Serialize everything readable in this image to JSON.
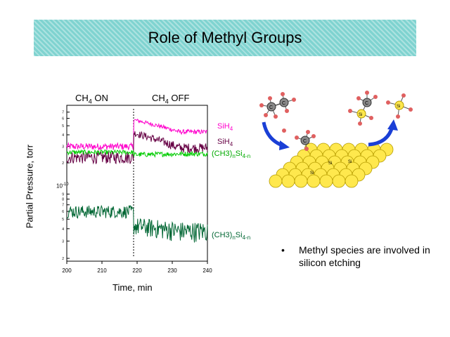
{
  "slide": {
    "title": "Role of Methyl Groups",
    "bullet": "Methyl species are involved in silicon etching",
    "bullet_symbol": "•"
  },
  "labels": {
    "cond_on_main": "CH",
    "cond_on_sub": "4",
    "cond_on_rest": " ON",
    "cond_off_main": "CH",
    "cond_off_sub": "4",
    "cond_off_rest": " OFF",
    "silane_main": "SiH",
    "silane_sub": "4",
    "silane2_main": "SiH",
    "silane2_sub": "4",
    "methyl_a": "(CH3)",
    "methyl_b": "n",
    "methyl_c": "Si",
    "methyl_d": "4-n",
    "methyl2_a": "(CH3)",
    "methyl2_b": "n",
    "methyl2_c": "Si",
    "methyl2_d": "4-n",
    "exp": "10",
    "exp_sup": "-10",
    "si": "Si",
    "c": "C"
  },
  "chart_data": {
    "type": "line",
    "xlabel": "Time, min",
    "ylabel": "Partial Pressure, torr",
    "xlim": [
      200,
      240
    ],
    "xticks": [
      200,
      210,
      220,
      230,
      240
    ],
    "transition_x": 219,
    "upper_ticks": [
      "7",
      "6",
      "5",
      "4",
      "3",
      "2"
    ],
    "lower_ticks": [
      "9",
      "8",
      "7",
      "6",
      "5",
      "4",
      "3",
      "2"
    ],
    "series": [
      {
        "name": "SiH4",
        "color": "#ff00cc",
        "panel": "upper",
        "before": 3.0,
        "after_start": 5.8,
        "after_end": 4.3,
        "noise": 0.25
      },
      {
        "name": "SiH4",
        "color": "#660044",
        "panel": "upper",
        "before": 2.3,
        "after_start": 4.2,
        "after_end": 2.9,
        "noise": 0.35
      },
      {
        "name": "(CH3)nSi4-n",
        "color": "#00cc00",
        "panel": "upper",
        "before": 2.6,
        "after_start": 2.45,
        "after_end": 2.5,
        "noise": 0.15
      },
      {
        "name": "(CH3)nSi4-n",
        "color": "#006633",
        "panel": "lower",
        "before": 6.0,
        "after_start": 4.3,
        "after_end": 3.8,
        "noise": 0.9
      }
    ],
    "colors": {
      "arrow": "#1a3fd6",
      "ball": "#ffe84d",
      "ball_stroke": "#b59b00",
      "red_atom": "#e06060",
      "carbon": "#8a8a8a"
    }
  }
}
